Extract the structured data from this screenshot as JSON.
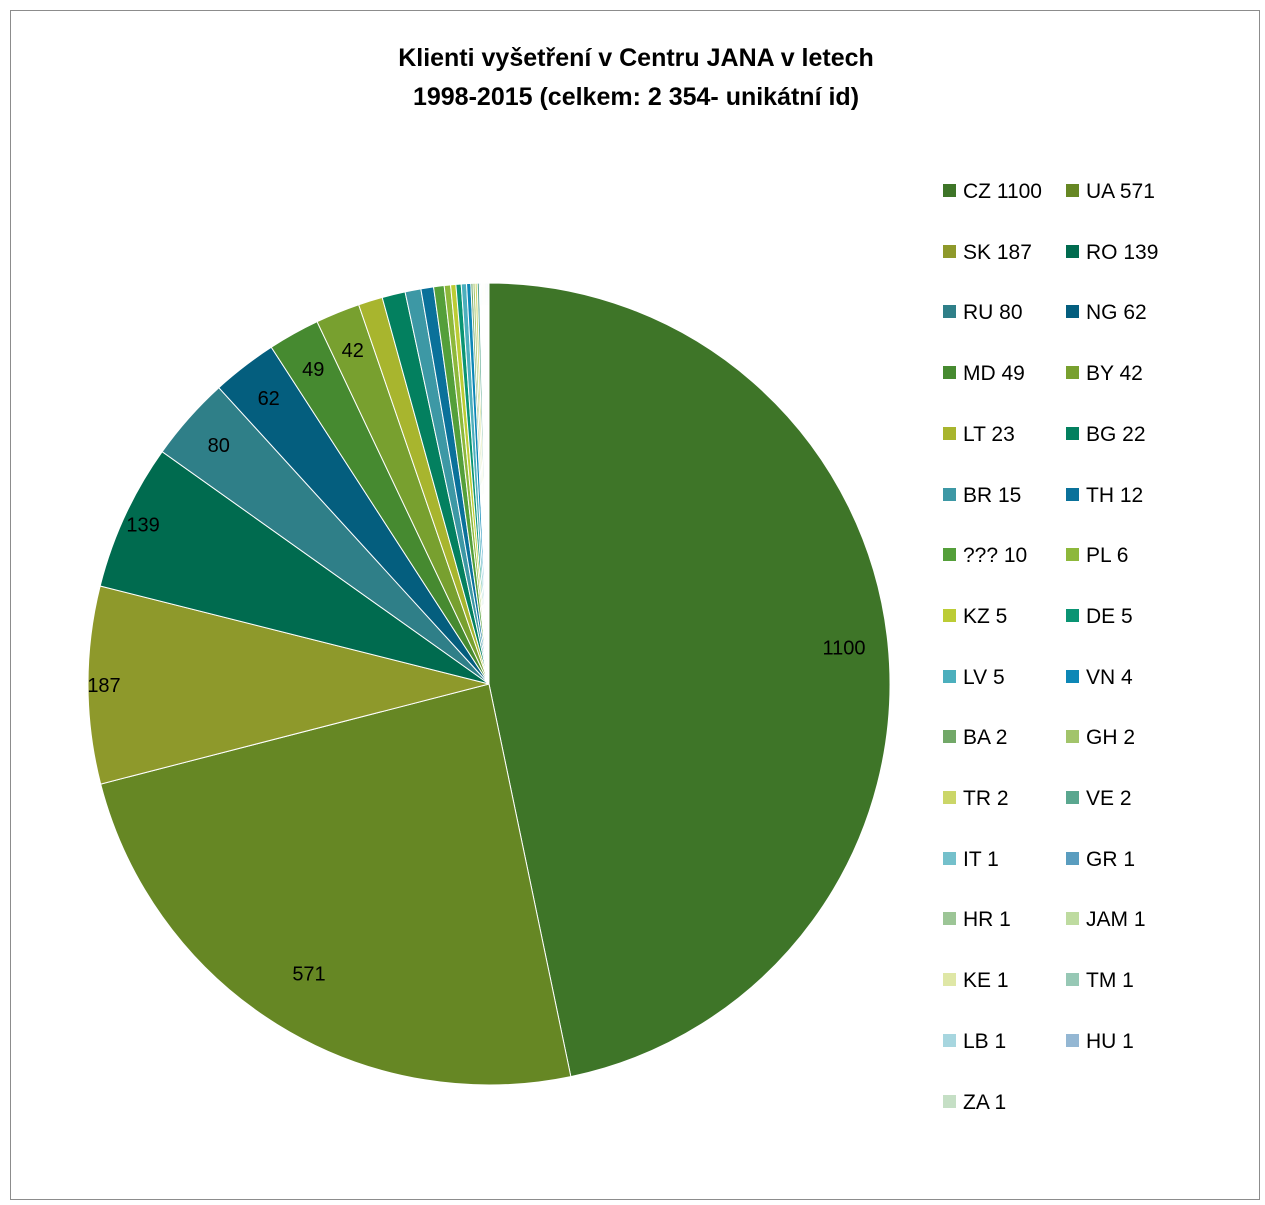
{
  "chart_data": {
    "type": "pie",
    "title_lines": [
      "Klienti vyšetření v Centru JANA v letech",
      "1998-2015 (celkem: 2 354- unikátní id)"
    ],
    "start_angle_deg": 0,
    "direction": "clockwise",
    "legend_position": "right",
    "slices": [
      {
        "label": "CZ",
        "value": 1100,
        "legend": "CZ 1100",
        "color": "#3e7528",
        "data_label": "1100"
      },
      {
        "label": "UA",
        "value": 571,
        "legend": "UA 571",
        "color": "#668724",
        "data_label": "571"
      },
      {
        "label": "SK",
        "value": 187,
        "legend": "SK 187",
        "color": "#8e992b",
        "data_label": "187"
      },
      {
        "label": "RO",
        "value": 139,
        "legend": "RO 139",
        "color": "#006b4f",
        "data_label": "139"
      },
      {
        "label": "RU",
        "value": 80,
        "legend": "RU 80",
        "color": "#2f7f88",
        "data_label": "80"
      },
      {
        "label": "NG",
        "value": 62,
        "legend": "NG 62",
        "color": "#045e7e",
        "data_label": "62"
      },
      {
        "label": "MD",
        "value": 49,
        "legend": "MD 49",
        "color": "#468a30",
        "data_label": "49"
      },
      {
        "label": "BY",
        "value": 42,
        "legend": "BY 42",
        "color": "#78a02f",
        "data_label": "42"
      },
      {
        "label": "LT",
        "value": 23,
        "legend": "LT 23",
        "color": "#a8b52e",
        "data_label": ""
      },
      {
        "label": "BG",
        "value": 22,
        "legend": "BG 22",
        "color": "#03805f",
        "data_label": ""
      },
      {
        "label": "BR",
        "value": 15,
        "legend": "BR 15",
        "color": "#3d98a5",
        "data_label": ""
      },
      {
        "label": "TH",
        "value": 12,
        "legend": "TH 12",
        "color": "#0a719a",
        "data_label": ""
      },
      {
        "label": "???",
        "value": 10,
        "legend": "??? 10",
        "color": "#549f3a",
        "data_label": ""
      },
      {
        "label": "PL",
        "value": 6,
        "legend": "PL 6",
        "color": "#8db83b",
        "data_label": ""
      },
      {
        "label": "KZ",
        "value": 5,
        "legend": "KZ 5",
        "color": "#bccc35",
        "data_label": ""
      },
      {
        "label": "DE",
        "value": 5,
        "legend": "DE 5",
        "color": "#0a9473",
        "data_label": ""
      },
      {
        "label": "LV",
        "value": 5,
        "legend": "LV 5",
        "color": "#4cafbd",
        "data_label": ""
      },
      {
        "label": "VN",
        "value": 4,
        "legend": "VN 4",
        "color": "#0d87b6",
        "data_label": ""
      },
      {
        "label": "BA",
        "value": 2,
        "legend": "BA 2",
        "color": "#72a868",
        "data_label": ""
      },
      {
        "label": "GH",
        "value": 2,
        "legend": "GH 2",
        "color": "#a2c46b",
        "data_label": ""
      },
      {
        "label": "TR",
        "value": 2,
        "legend": "TR 2",
        "color": "#cbd668",
        "data_label": ""
      },
      {
        "label": "VE",
        "value": 2,
        "legend": "VE 2",
        "color": "#5aa78f",
        "data_label": ""
      },
      {
        "label": "IT",
        "value": 1,
        "legend": "IT 1",
        "color": "#74c0cb",
        "data_label": ""
      },
      {
        "label": "GR",
        "value": 1,
        "legend": "GR 1",
        "color": "#5a9dbf",
        "data_label": ""
      },
      {
        "label": "HR",
        "value": 1,
        "legend": "HR 1",
        "color": "#9cc596",
        "data_label": ""
      },
      {
        "label": "JAM",
        "value": 1,
        "legend": "JAM 1",
        "color": "#bedba0",
        "data_label": ""
      },
      {
        "label": "KE",
        "value": 1,
        "legend": "KE 1",
        "color": "#dfe7a6",
        "data_label": ""
      },
      {
        "label": "TM",
        "value": 1,
        "legend": "TM 1",
        "color": "#97c8b5",
        "data_label": ""
      },
      {
        "label": "LB",
        "value": 1,
        "legend": "LB 1",
        "color": "#a7d6df",
        "data_label": ""
      },
      {
        "label": "HU",
        "value": 1,
        "legend": "HU 1",
        "color": "#94b7d3",
        "data_label": ""
      },
      {
        "label": "ZA",
        "value": 1,
        "legend": "ZA 1",
        "color": "#c5dfc5",
        "data_label": ""
      }
    ]
  }
}
